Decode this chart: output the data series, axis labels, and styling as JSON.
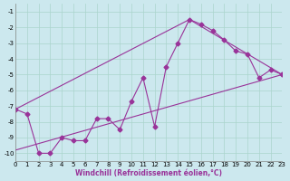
{
  "xlabel": "Windchill (Refroidissement éolien,°C)",
  "background_color": "#cce8ee",
  "grid_color": "#aad4cc",
  "line_color": "#993399",
  "xlim": [
    0,
    23
  ],
  "ylim": [
    -10.5,
    -0.5
  ],
  "yticks": [
    -1,
    -2,
    -3,
    -4,
    -5,
    -6,
    -7,
    -8,
    -9,
    -10
  ],
  "xticks": [
    0,
    1,
    2,
    3,
    4,
    5,
    6,
    7,
    8,
    9,
    10,
    11,
    12,
    13,
    14,
    15,
    16,
    17,
    18,
    19,
    20,
    21,
    22,
    23
  ],
  "series": [
    [
      0,
      -7.2
    ],
    [
      1,
      -7.5
    ],
    [
      2,
      -10.0
    ],
    [
      3,
      -10.0
    ],
    [
      4,
      -9.0
    ],
    [
      5,
      -9.2
    ],
    [
      6,
      -9.2
    ],
    [
      7,
      -7.8
    ],
    [
      8,
      -7.8
    ],
    [
      9,
      -8.5
    ],
    [
      10,
      -6.7
    ],
    [
      11,
      -5.2
    ],
    [
      12,
      -8.3
    ],
    [
      13,
      -4.5
    ],
    [
      14,
      -3.0
    ],
    [
      15,
      -1.5
    ],
    [
      16,
      -1.8
    ],
    [
      17,
      -2.2
    ],
    [
      18,
      -2.8
    ],
    [
      19,
      -3.5
    ],
    [
      20,
      -3.7
    ],
    [
      21,
      -5.2
    ],
    [
      22,
      -4.7
    ],
    [
      23,
      -5.0
    ]
  ],
  "series2": [
    [
      0,
      -7.2
    ],
    [
      15,
      -1.5
    ],
    [
      23,
      -5.0
    ]
  ],
  "series3": [
    [
      0,
      -9.8
    ],
    [
      23,
      -5.0
    ]
  ]
}
